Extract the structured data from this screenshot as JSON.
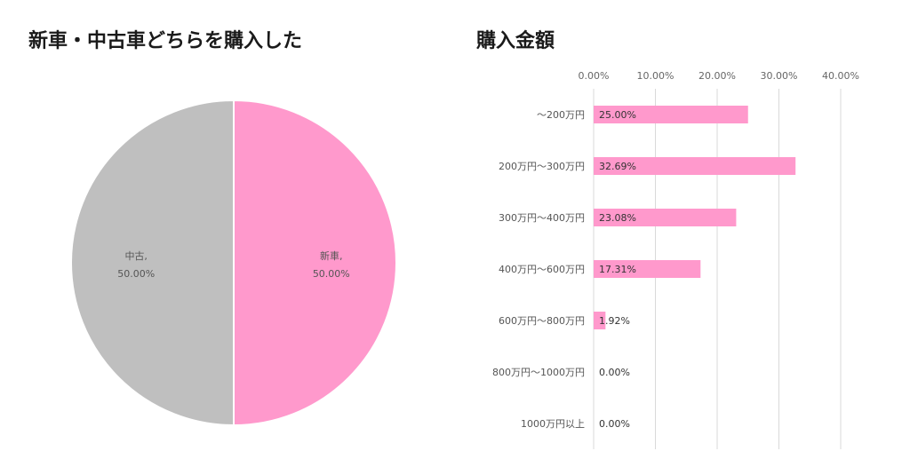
{
  "chart_data": [
    {
      "type": "pie",
      "title": "新車・中古車どちらを購入した",
      "slices": [
        {
          "label": "新車",
          "value": 50.0,
          "value_label": "50.00%",
          "color": "#ff99cc"
        },
        {
          "label": "中古",
          "value": 50.0,
          "value_label": "50.00%",
          "color": "#bfbfbf"
        }
      ],
      "label_separator": ","
    },
    {
      "type": "bar",
      "orientation": "horizontal",
      "title": "購入金額",
      "categories": [
        "～200万円",
        "200万円～300万円",
        "300万円～400万円",
        "400万円～600万円",
        "600万円～800万円",
        "800万円～1000万円",
        "1000万円以上"
      ],
      "values": [
        25.0,
        32.69,
        23.08,
        17.31,
        1.92,
        0.0,
        0.0
      ],
      "value_labels": [
        "25.00%",
        "32.69%",
        "23.08%",
        "17.31%",
        "1.92%",
        "0.00%",
        "0.00%"
      ],
      "xlim": [
        0,
        40
      ],
      "ticks": [
        "0.00%",
        "10.00%",
        "20.00%",
        "30.00%",
        "40.00%"
      ],
      "axis_position": "top",
      "grid": true,
      "bar_color": "#ff99cc"
    }
  ]
}
